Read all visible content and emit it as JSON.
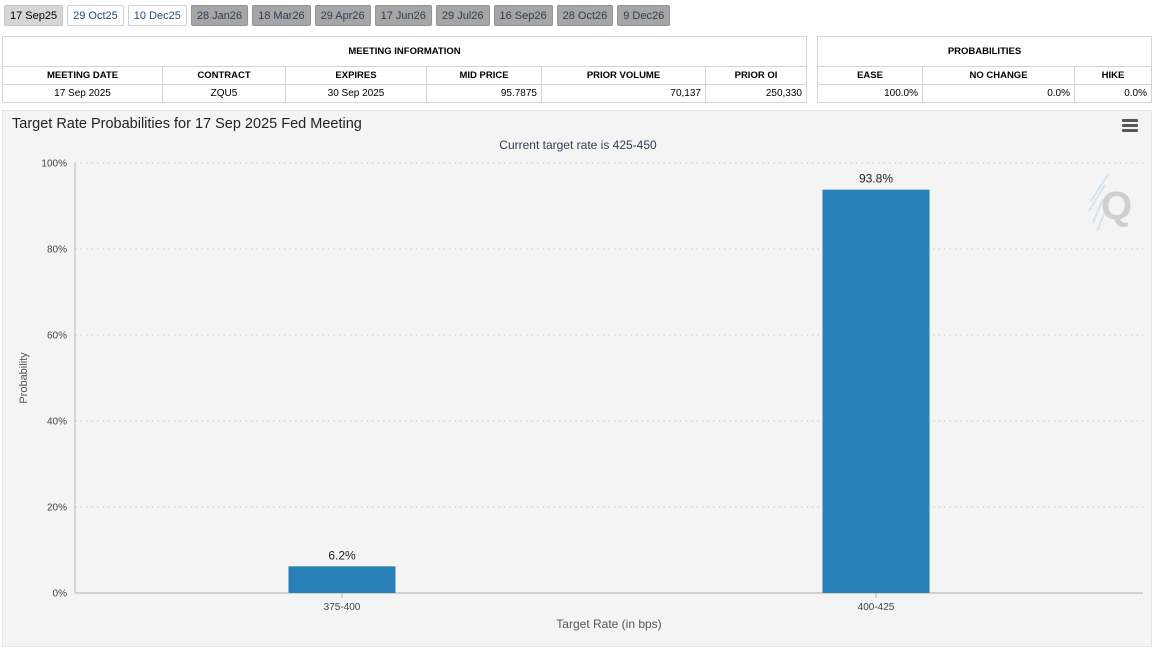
{
  "tabs": [
    {
      "label": "17 Sep25",
      "state": "active"
    },
    {
      "label": "29 Oct25",
      "state": "avail"
    },
    {
      "label": "10 Dec25",
      "state": "avail"
    },
    {
      "label": "28 Jan26",
      "state": "future"
    },
    {
      "label": "18 Mar26",
      "state": "future"
    },
    {
      "label": "29 Apr26",
      "state": "future"
    },
    {
      "label": "17 Jun26",
      "state": "future"
    },
    {
      "label": "29 Jul26",
      "state": "future"
    },
    {
      "label": "16 Sep26",
      "state": "future"
    },
    {
      "label": "28 Oct26",
      "state": "future"
    },
    {
      "label": "9 Dec26",
      "state": "future"
    }
  ],
  "meeting_info": {
    "title": "MEETING INFORMATION",
    "headers": [
      "MEETING DATE",
      "CONTRACT",
      "EXPIRES",
      "MID PRICE",
      "PRIOR VOLUME",
      "PRIOR OI"
    ],
    "row": {
      "meeting_date": "17 Sep 2025",
      "contract": "ZQU5",
      "expires": "30 Sep 2025",
      "mid_price": "95.7875",
      "prior_volume": "70,137",
      "prior_oi": "250,330"
    }
  },
  "probabilities": {
    "title": "PROBABILITIES",
    "headers": [
      "EASE",
      "NO CHANGE",
      "HIKE"
    ],
    "row": {
      "ease": "100.0%",
      "no_change": "0.0%",
      "hike": "0.0%"
    }
  },
  "chart": {
    "title": "Target Rate Probabilities for 17 Sep 2025 Fed Meeting",
    "subtitle": "Current target rate is 425-450"
  },
  "chart_data": {
    "type": "bar",
    "categories": [
      "375-400",
      "400-425"
    ],
    "values": [
      6.2,
      93.8
    ],
    "data_labels": [
      "6.2%",
      "93.8%"
    ],
    "xlabel": "Target Rate (in bps)",
    "ylabel": "Probability",
    "ylim": [
      0,
      100
    ],
    "yticks": [
      0,
      20,
      40,
      60,
      80,
      100
    ],
    "ytick_labels": [
      "0%",
      "20%",
      "40%",
      "60%",
      "80%",
      "100%"
    ],
    "grid": true,
    "bar_color": "#2980b9"
  }
}
